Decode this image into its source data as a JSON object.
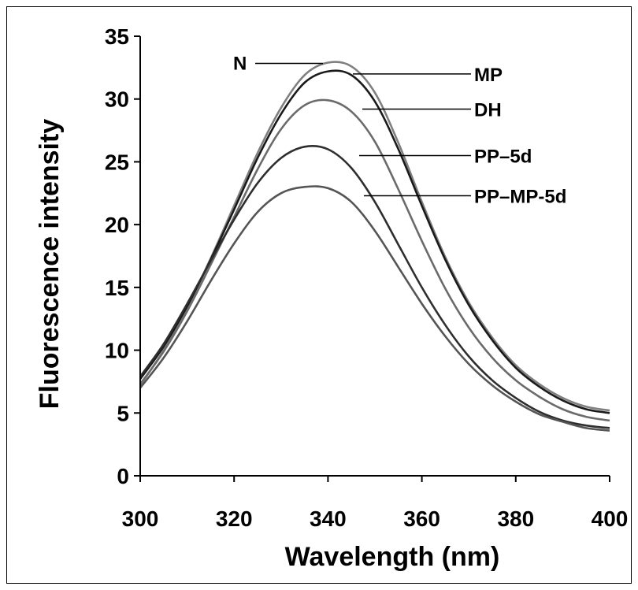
{
  "chart_data": {
    "type": "line",
    "title": "",
    "xlabel": "Wavelength (nm)",
    "ylabel": "Fluorescence intensity",
    "xlim": [
      300,
      400
    ],
    "ylim": [
      0,
      35
    ],
    "xticks": [
      300,
      320,
      340,
      360,
      380,
      400
    ],
    "yticks": [
      0,
      5,
      10,
      15,
      20,
      25,
      30,
      35
    ],
    "grid": false,
    "legend": "inline labels with leader lines",
    "x": [
      300,
      305,
      310,
      315,
      320,
      325,
      330,
      335,
      340,
      345,
      350,
      355,
      360,
      365,
      370,
      375,
      380,
      385,
      390,
      395,
      400
    ],
    "series": [
      {
        "name": "N",
        "color": "#7f7f7f",
        "values": [
          7.2,
          10.0,
          13.4,
          17.3,
          21.5,
          25.7,
          29.3,
          31.9,
          32.9,
          32.6,
          30.5,
          26.5,
          21.8,
          17.4,
          13.8,
          11.0,
          8.8,
          7.3,
          6.2,
          5.5,
          5.2
        ]
      },
      {
        "name": "MP",
        "color": "#1a1a1a",
        "values": [
          7.7,
          10.3,
          13.5,
          17.2,
          21.2,
          25.3,
          28.8,
          31.3,
          32.2,
          31.9,
          29.8,
          26.0,
          21.5,
          17.2,
          13.6,
          10.8,
          8.6,
          7.1,
          6.0,
          5.3,
          5.0
        ]
      },
      {
        "name": "DH",
        "color": "#6b6b6b",
        "values": [
          7.3,
          9.9,
          13.1,
          16.8,
          20.6,
          24.4,
          27.6,
          29.5,
          29.9,
          29.0,
          26.6,
          22.8,
          18.7,
          14.9,
          11.8,
          9.4,
          7.6,
          6.3,
          5.3,
          4.7,
          4.4
        ]
      },
      {
        "name": "PP–5d",
        "color": "#2e2e2e",
        "values": [
          7.9,
          10.5,
          13.7,
          17.1,
          20.4,
          23.3,
          25.3,
          26.2,
          26.0,
          24.5,
          21.8,
          18.4,
          15.0,
          12.0,
          9.5,
          7.6,
          6.2,
          5.1,
          4.4,
          4.0,
          3.8
        ]
      },
      {
        "name": "PP–MP-5d",
        "color": "#555555",
        "values": [
          7.0,
          9.4,
          12.3,
          15.5,
          18.5,
          21.0,
          22.5,
          23.0,
          22.9,
          21.8,
          19.5,
          16.6,
          13.7,
          11.1,
          8.9,
          7.2,
          5.9,
          4.9,
          4.3,
          3.8,
          3.6
        ]
      }
    ]
  }
}
